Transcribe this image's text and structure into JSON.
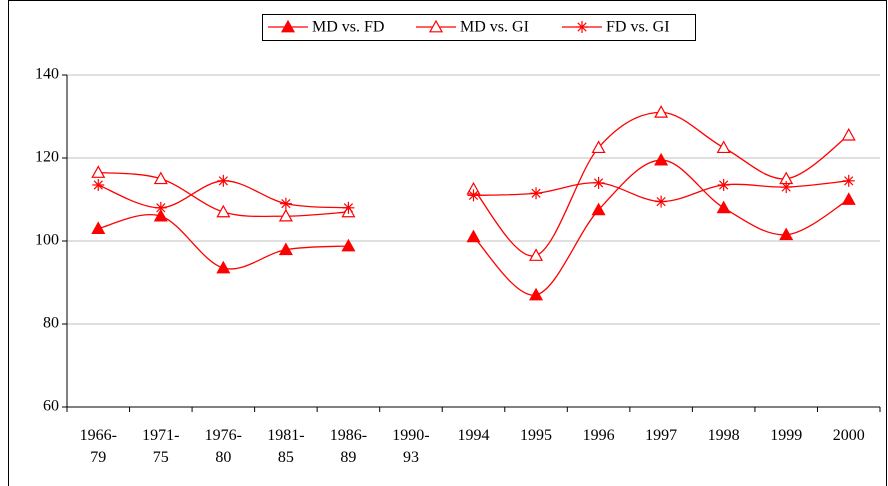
{
  "chart_data": {
    "type": "line",
    "categories": [
      "1966-\n79",
      "1971-\n75",
      "1976-\n80",
      "1981-\n85",
      "1986-\n89",
      "1990-\n93",
      "1994",
      "1995",
      "1996",
      "1997",
      "1998",
      "1999",
      "2000"
    ],
    "series": [
      {
        "name": "MD vs. FD",
        "color": "#ff0000",
        "marker": "filled-triangle",
        "values": [
          103,
          106,
          93.5,
          97.9,
          98.8,
          null,
          101,
          87,
          107.5,
          119.5,
          108,
          101.5,
          110
        ]
      },
      {
        "name": "MD vs. GI",
        "color": "#ff0000",
        "marker": "open-triangle",
        "values": [
          116.5,
          115,
          107,
          106,
          107,
          null,
          112.5,
          96.5,
          122.5,
          131,
          122.5,
          115,
          125.5
        ]
      },
      {
        "name": "FD vs. GI",
        "color": "#ff0000",
        "marker": "star",
        "values": [
          113.5,
          108,
          114.5,
          109,
          108,
          null,
          111,
          111.5,
          114,
          109.5,
          113.5,
          113,
          114.5
        ]
      }
    ],
    "ylim": [
      60,
      140
    ],
    "yticks": [
      60,
      80,
      100,
      120,
      140
    ],
    "grid": true,
    "smooth": true,
    "legend": "top"
  }
}
